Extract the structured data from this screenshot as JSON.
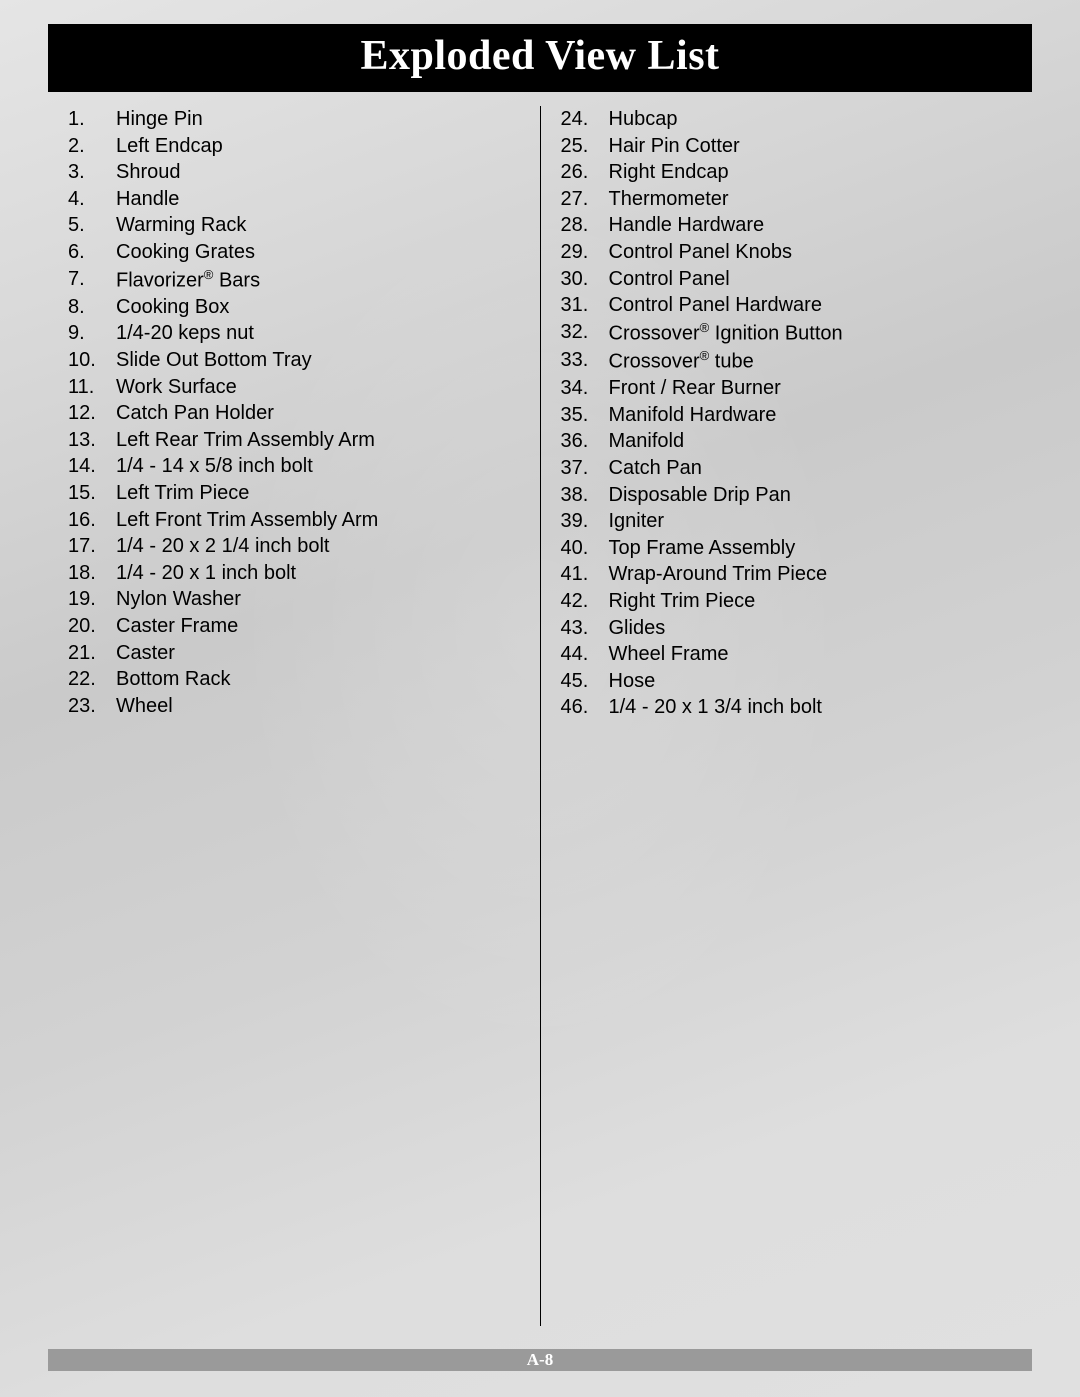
{
  "title": "Exploded View List",
  "page_number": "A-8",
  "colors": {
    "title_bg": "#000000",
    "title_text": "#ffffff",
    "body_text": "#000000",
    "footer_bg": "#9a9a9a",
    "footer_text": "#ffffff",
    "divider": "#000000"
  },
  "typography": {
    "title_font": "Times New Roman",
    "title_size_pt": 32,
    "title_weight": "bold",
    "body_font": "Arial",
    "body_size_pt": 15,
    "footer_font": "Times New Roman",
    "footer_size_pt": 13,
    "footer_weight": "bold"
  },
  "left_column": [
    {
      "num": "1.",
      "label": "Hinge Pin"
    },
    {
      "num": "2.",
      "label": "Left Endcap"
    },
    {
      "num": "3.",
      "label": "Shroud"
    },
    {
      "num": "4.",
      "label": "Handle"
    },
    {
      "num": "5.",
      "label": "Warming Rack"
    },
    {
      "num": "6.",
      "label": "Cooking Grates"
    },
    {
      "num": "7.",
      "label": "Flavorizer® Bars"
    },
    {
      "num": "8.",
      "label": "Cooking Box"
    },
    {
      "num": "9.",
      "label": "1/4-20 keps nut"
    },
    {
      "num": "10.",
      "label": "Slide Out Bottom Tray"
    },
    {
      "num": "11.",
      "label": "Work Surface"
    },
    {
      "num": "12.",
      "label": "Catch Pan Holder"
    },
    {
      "num": "13.",
      "label": "Left Rear Trim Assembly Arm"
    },
    {
      "num": "14.",
      "label": "1/4 - 14 x 5/8 inch bolt"
    },
    {
      "num": "15.",
      "label": "Left Trim Piece"
    },
    {
      "num": "16.",
      "label": "Left Front Trim Assembly Arm"
    },
    {
      "num": "17.",
      "label": "1/4 - 20 x 2 1/4 inch bolt"
    },
    {
      "num": "18.",
      "label": "1/4 - 20 x 1 inch bolt"
    },
    {
      "num": "19.",
      "label": "Nylon Washer"
    },
    {
      "num": "20.",
      "label": "Caster Frame"
    },
    {
      "num": "21.",
      "label": "Caster"
    },
    {
      "num": "22.",
      "label": "Bottom Rack"
    },
    {
      "num": "23.",
      "label": "Wheel"
    }
  ],
  "right_column": [
    {
      "num": "24.",
      "label": "Hubcap"
    },
    {
      "num": "25.",
      "label": "Hair Pin Cotter"
    },
    {
      "num": "26.",
      "label": "Right Endcap"
    },
    {
      "num": "27.",
      "label": "Thermometer"
    },
    {
      "num": "28.",
      "label": "Handle Hardware"
    },
    {
      "num": "29.",
      "label": "Control Panel Knobs"
    },
    {
      "num": "30.",
      "label": "Control Panel"
    },
    {
      "num": "31.",
      "label": "Control Panel Hardware"
    },
    {
      "num": "32.",
      "label": "Crossover® Ignition Button"
    },
    {
      "num": "33.",
      "label": "Crossover® tube"
    },
    {
      "num": "34.",
      "label": "Front / Rear Burner"
    },
    {
      "num": "35.",
      "label": "Manifold Hardware"
    },
    {
      "num": "36.",
      "label": "Manifold"
    },
    {
      "num": "37.",
      "label": "Catch Pan"
    },
    {
      "num": "38.",
      "label": "Disposable Drip Pan"
    },
    {
      "num": "39.",
      "label": "Igniter"
    },
    {
      "num": "40.",
      "label": "Top Frame Assembly"
    },
    {
      "num": "41.",
      "label": "Wrap-Around Trim Piece"
    },
    {
      "num": "42.",
      "label": "Right Trim Piece"
    },
    {
      "num": "43.",
      "label": "Glides"
    },
    {
      "num": "44.",
      "label": "Wheel Frame"
    },
    {
      "num": "45.",
      "label": "Hose"
    },
    {
      "num": "46.",
      "label": "1/4 - 20 x 1 3/4 inch bolt"
    }
  ]
}
